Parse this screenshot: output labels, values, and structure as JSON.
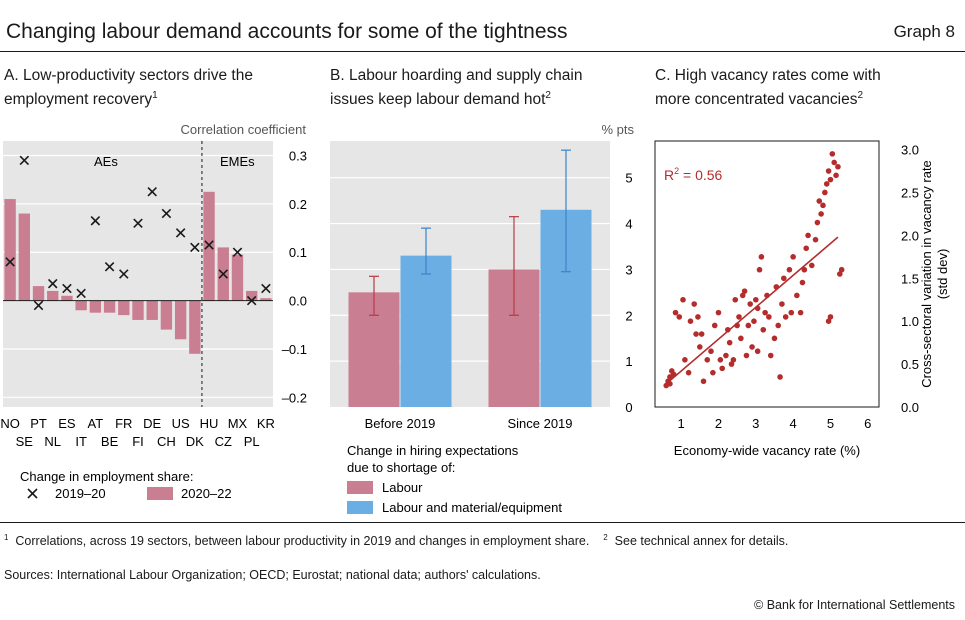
{
  "header": {
    "title": "Changing labour demand accounts for some of the tightness",
    "graph_number": "Graph 8"
  },
  "panel_a": {
    "title_line1": "A. Low-productivity sectors drive the",
    "title_line2": "employment recovery",
    "title_sup": "1",
    "unit": "Correlation coefficient",
    "group_left": "AEs",
    "group_right": "EMEs",
    "legend_title": "Change in employment share:",
    "legend_cross": "2019–20",
    "legend_bar": "2020–22"
  },
  "panel_b": {
    "title_line1": "B. Labour hoarding and supply chain",
    "title_line2": "issues keep labour demand hot",
    "title_sup": "2",
    "unit": "% pts",
    "legend_title_line1": "Change in hiring expectations",
    "legend_title_line2": "due to shortage of:",
    "legend_labour": "Labour",
    "legend_material": "Labour and material/equipment"
  },
  "panel_c": {
    "title_line1": "C. High vacancy rates come with",
    "title_line2": "more concentrated vacancies",
    "title_sup": "2",
    "r2_label": "R",
    "r2_sup": "2",
    "r2_value": " = 0.56",
    "ylabel_line1": "Cross-sectoral variation in vacancy rate",
    "ylabel_line2": "(std dev)"
  },
  "footnotes": {
    "n1_mark": "1",
    "n1_text": "Correlations, across 19 sectors, between labour productivity in 2019 and changes in employment share.",
    "n2_mark": "2",
    "n2_text": "See technical annex for details."
  },
  "sources": "Sources: International Labour Organization; OECD; Eurostat; national data; authors' calculations.",
  "copyright": "© Bank for International Settlements",
  "colors": {
    "bar_pink": "#c97f91",
    "bar_blue": "#6aaee3",
    "err_red": "#b63a44",
    "err_blue": "#3a84c9",
    "scatter": "#b52c2c",
    "panel_bg": "#e6e6e6"
  },
  "chart_data": [
    {
      "type": "bar",
      "panel": "A",
      "categories": [
        "NO",
        "SE",
        "PT",
        "NL",
        "ES",
        "IT",
        "AT",
        "BE",
        "FR",
        "FI",
        "DE",
        "CH",
        "US",
        "DK",
        "HU",
        "CZ",
        "MX",
        "PL",
        "KR"
      ],
      "tick_row1": [
        "NO",
        "PT",
        "ES",
        "AT",
        "FR",
        "DE",
        "US",
        "HU",
        "MX",
        "KR"
      ],
      "tick_row2": [
        "SE",
        "NL",
        "IT",
        "BE",
        "FI",
        "CH",
        "DK",
        "CZ",
        "PL"
      ],
      "series": [
        {
          "name": "2020–22",
          "marker": "bar",
          "values": [
            0.21,
            0.18,
            0.03,
            0.02,
            0.01,
            -0.02,
            -0.025,
            -0.025,
            -0.03,
            -0.04,
            -0.04,
            -0.06,
            -0.08,
            -0.11,
            0.225,
            0.11,
            0.095,
            0.02,
            0.005
          ]
        },
        {
          "name": "2019–20",
          "marker": "cross",
          "values": [
            0.08,
            0.29,
            -0.01,
            0.035,
            0.025,
            0.015,
            0.165,
            0.07,
            0.055,
            0.16,
            0.225,
            0.18,
            0.14,
            0.11,
            0.115,
            0.055,
            0.1,
            0.0,
            0.025
          ]
        }
      ],
      "ylim": [
        -0.22,
        0.33
      ],
      "yticks": [
        0.3,
        0.2,
        0.1,
        0.0,
        -0.1,
        -0.2
      ],
      "ytick_labels": [
        "0.3",
        "0.2",
        "0.1",
        "0.0",
        "–0.1",
        "–0.2"
      ],
      "split_after_index": 13
    },
    {
      "type": "bar",
      "panel": "B",
      "categories": [
        "Before 2019",
        "Since 2019"
      ],
      "series": [
        {
          "name": "Labour",
          "values": [
            2.5,
            3.0
          ],
          "err_low": [
            2.0,
            2.0
          ],
          "err_high": [
            2.85,
            4.15
          ]
        },
        {
          "name": "Labour and material/equipment",
          "values": [
            3.3,
            4.3
          ],
          "err_low": [
            2.9,
            2.95
          ],
          "err_high": [
            3.9,
            5.6
          ]
        }
      ],
      "ylim": [
        0,
        5.8
      ],
      "yticks": [
        0,
        1,
        2,
        3,
        4,
        5
      ],
      "ytick_labels": [
        "0",
        "1",
        "2",
        "3",
        "4",
        "5"
      ]
    },
    {
      "type": "scatter",
      "panel": "C",
      "xlabel": "Economy-wide vacancy rate (%)",
      "xlim": [
        0.3,
        6.3
      ],
      "ylim": [
        0.0,
        3.1
      ],
      "xticks": [
        1,
        2,
        3,
        4,
        5,
        6
      ],
      "yticks": [
        0.0,
        0.5,
        1.0,
        1.5,
        2.0,
        2.5,
        3.0
      ],
      "ytick_labels": [
        "0.0",
        "0.5",
        "1.0",
        "1.5",
        "2.0",
        "2.5",
        "3.0"
      ],
      "fit_line": {
        "x": [
          0.6,
          5.2
        ],
        "y": [
          0.27,
          1.98
        ]
      },
      "points": [
        [
          0.6,
          0.25
        ],
        [
          0.65,
          0.3
        ],
        [
          0.7,
          0.35
        ],
        [
          0.7,
          0.27
        ],
        [
          0.75,
          0.42
        ],
        [
          0.8,
          0.38
        ],
        [
          0.85,
          1.1
        ],
        [
          0.95,
          1.05
        ],
        [
          1.05,
          1.25
        ],
        [
          1.1,
          0.55
        ],
        [
          1.2,
          0.4
        ],
        [
          1.25,
          1.0
        ],
        [
          1.35,
          1.2
        ],
        [
          1.4,
          0.85
        ],
        [
          1.45,
          1.05
        ],
        [
          1.5,
          0.7
        ],
        [
          1.6,
          0.3
        ],
        [
          1.7,
          0.55
        ],
        [
          1.8,
          0.65
        ],
        [
          1.85,
          0.4
        ],
        [
          1.9,
          0.95
        ],
        [
          2.0,
          1.1
        ],
        [
          2.05,
          0.55
        ],
        [
          2.1,
          0.45
        ],
        [
          2.2,
          0.6
        ],
        [
          2.25,
          0.9
        ],
        [
          2.3,
          0.75
        ],
        [
          2.35,
          0.5
        ],
        [
          2.4,
          0.55
        ],
        [
          2.45,
          1.25
        ],
        [
          2.5,
          0.95
        ],
        [
          2.55,
          1.05
        ],
        [
          2.6,
          0.8
        ],
        [
          2.7,
          1.35
        ],
        [
          2.75,
          0.6
        ],
        [
          2.8,
          0.95
        ],
        [
          2.85,
          1.2
        ],
        [
          2.9,
          0.7
        ],
        [
          2.95,
          1.0
        ],
        [
          3.0,
          1.25
        ],
        [
          3.05,
          1.15
        ],
        [
          3.05,
          0.65
        ],
        [
          3.1,
          1.6
        ],
        [
          3.15,
          1.75
        ],
        [
          3.2,
          0.9
        ],
        [
          3.25,
          1.1
        ],
        [
          3.3,
          1.3
        ],
        [
          3.35,
          1.05
        ],
        [
          3.4,
          0.6
        ],
        [
          3.5,
          0.8
        ],
        [
          3.55,
          1.4
        ],
        [
          3.6,
          0.95
        ],
        [
          3.7,
          1.2
        ],
        [
          3.75,
          1.5
        ],
        [
          3.8,
          1.05
        ],
        [
          3.9,
          1.6
        ],
        [
          3.95,
          1.1
        ],
        [
          4.0,
          1.75
        ],
        [
          4.1,
          1.3
        ],
        [
          4.2,
          1.1
        ],
        [
          4.25,
          1.45
        ],
        [
          4.3,
          1.6
        ],
        [
          4.35,
          1.85
        ],
        [
          4.4,
          2.0
        ],
        [
          4.5,
          1.65
        ],
        [
          4.6,
          1.95
        ],
        [
          4.65,
          2.15
        ],
        [
          4.7,
          2.4
        ],
        [
          4.75,
          2.25
        ],
        [
          4.8,
          2.35
        ],
        [
          4.85,
          2.5
        ],
        [
          4.9,
          2.6
        ],
        [
          4.95,
          2.75
        ],
        [
          5.0,
          2.65
        ],
        [
          5.05,
          2.95
        ],
        [
          5.1,
          2.85
        ],
        [
          5.15,
          2.7
        ],
        [
          5.2,
          2.8
        ],
        [
          5.25,
          1.55
        ],
        [
          5.3,
          1.6
        ],
        [
          5.0,
          1.05
        ],
        [
          4.95,
          1.0
        ],
        [
          3.65,
          0.35
        ],
        [
          1.55,
          0.85
        ],
        [
          2.65,
          1.3
        ]
      ]
    }
  ]
}
